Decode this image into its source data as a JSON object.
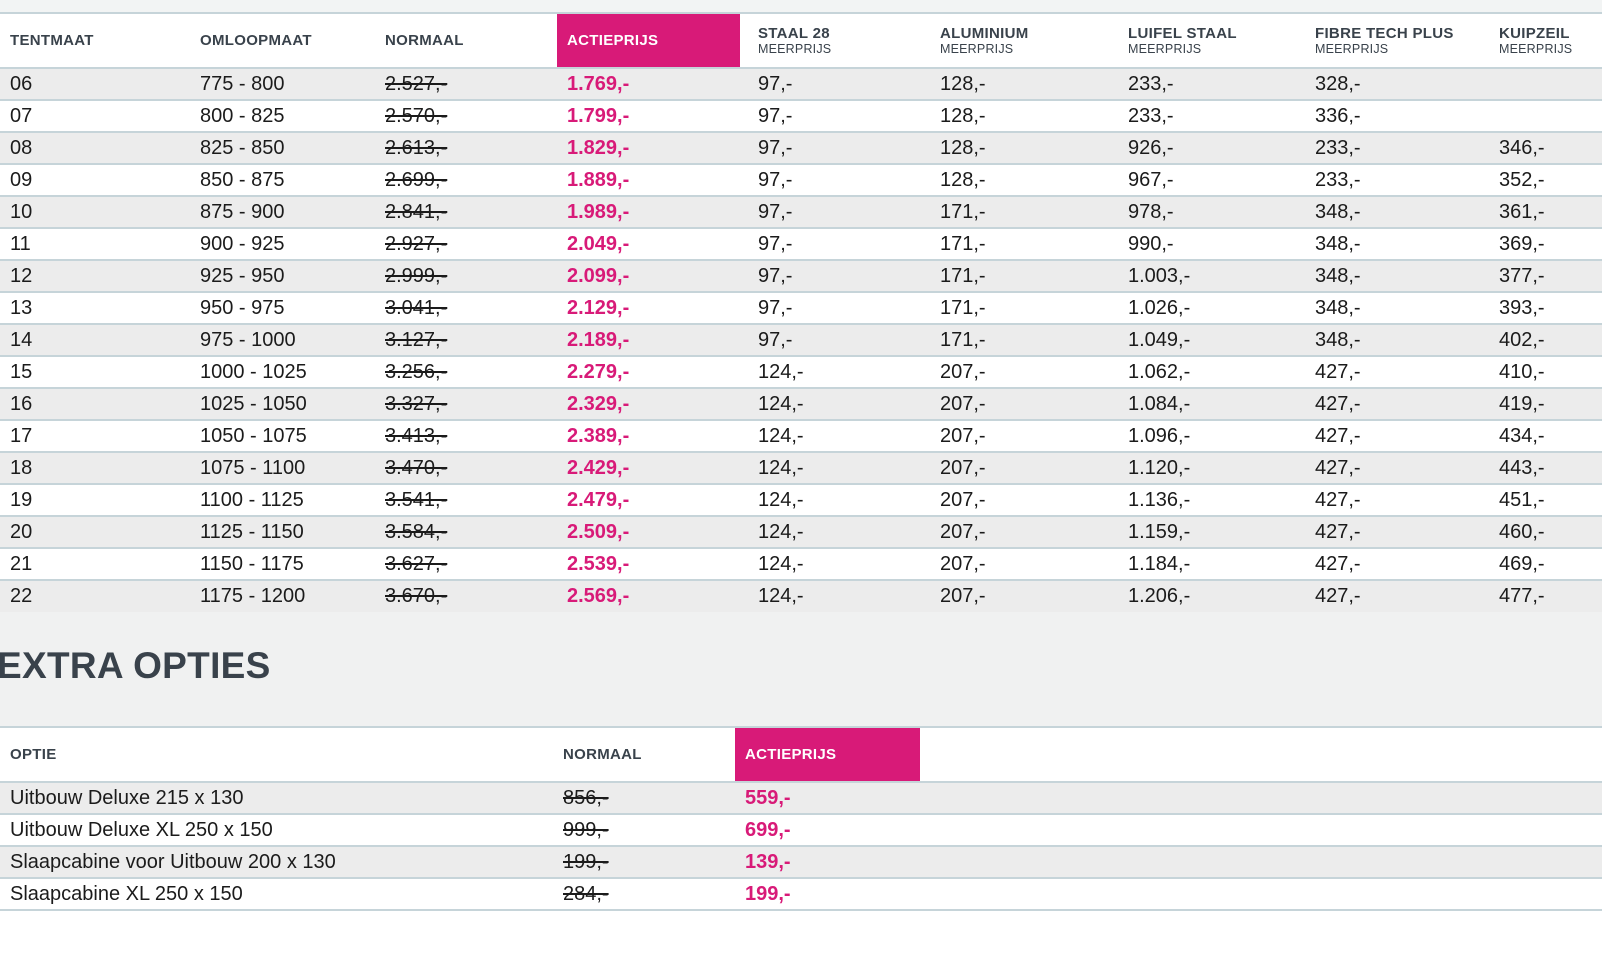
{
  "colors": {
    "accent": "#d81a78"
  },
  "main_table": {
    "columns": [
      {
        "label": "TENTMAAT",
        "sub": ""
      },
      {
        "label": "OMLOOPMAAT",
        "sub": ""
      },
      {
        "label": "NORMAAL",
        "sub": ""
      },
      {
        "label": "ACTIEPRIJS",
        "sub": ""
      },
      {
        "label": "STAAL 28",
        "sub": "MEERPRIJS"
      },
      {
        "label": "ALUMINIUM",
        "sub": "MEERPRIJS"
      },
      {
        "label": "LUIFEL STAAL",
        "sub": "MEERPRIJS"
      },
      {
        "label": "FIBRE TECH PLUS",
        "sub": "MEERPRIJS"
      },
      {
        "label": "KUIPZEIL",
        "sub": "MEERPRIJS"
      }
    ],
    "keys": [
      "tentmaat",
      "omloopmaat",
      "normaal",
      "actieprijs",
      "staal28",
      "aluminium",
      "luifel-staal",
      "fibre-tech-plus",
      "kuipzeil"
    ],
    "cell_styles": [
      "plain",
      "plain",
      "strike",
      "deal",
      "plain",
      "plain",
      "plain",
      "plain",
      "plain"
    ],
    "rows": [
      [
        "06",
        "775 - 800",
        "2.527,-",
        "1.769,-",
        "97,-",
        "128,-",
        "233,-",
        "328,-",
        ""
      ],
      [
        "07",
        "800 - 825",
        "2.570,-",
        "1.799,-",
        "97,-",
        "128,-",
        "233,-",
        "336,-",
        ""
      ],
      [
        "08",
        "825 - 850",
        "2.613,-",
        "1.829,-",
        "97,-",
        "128,-",
        "926,-",
        "233,-",
        "346,-"
      ],
      [
        "09",
        "850 - 875",
        "2.699,-",
        "1.889,-",
        "97,-",
        "128,-",
        "967,-",
        "233,-",
        "352,-"
      ],
      [
        "10",
        "875 - 900",
        "2.841,-",
        "1.989,-",
        "97,-",
        "171,-",
        "978,-",
        "348,-",
        "361,-"
      ],
      [
        "11",
        "900 - 925",
        "2.927,-",
        "2.049,-",
        "97,-",
        "171,-",
        "990,-",
        "348,-",
        "369,-"
      ],
      [
        "12",
        "925 - 950",
        "2.999,-",
        "2.099,-",
        "97,-",
        "171,-",
        "1.003,-",
        "348,-",
        "377,-"
      ],
      [
        "13",
        "950 - 975",
        "3.041,-",
        "2.129,-",
        "97,-",
        "171,-",
        "1.026,-",
        "348,-",
        "393,-"
      ],
      [
        "14",
        "975 - 1000",
        "3.127,-",
        "2.189,-",
        "97,-",
        "171,-",
        "1.049,-",
        "348,-",
        "402,-"
      ],
      [
        "15",
        "1000 - 1025",
        "3.256,-",
        "2.279,-",
        "124,-",
        "207,-",
        "1.062,-",
        "427,-",
        "410,-"
      ],
      [
        "16",
        "1025 - 1050",
        "3.327,-",
        "2.329,-",
        "124,-",
        "207,-",
        "1.084,-",
        "427,-",
        "419,-"
      ],
      [
        "17",
        "1050 - 1075",
        "3.413,-",
        "2.389,-",
        "124,-",
        "207,-",
        "1.096,-",
        "427,-",
        "434,-"
      ],
      [
        "18",
        "1075 - 1100",
        "3.470,-",
        "2.429,-",
        "124,-",
        "207,-",
        "1.120,-",
        "427,-",
        "443,-"
      ],
      [
        "19",
        "1100 - 1125",
        "3.541,-",
        "2.479,-",
        "124,-",
        "207,-",
        "1.136,-",
        "427,-",
        "451,-"
      ],
      [
        "20",
        "1125 - 1150",
        "3.584,-",
        "2.509,-",
        "124,-",
        "207,-",
        "1.159,-",
        "427,-",
        "460,-"
      ],
      [
        "21",
        "1150 - 1175",
        "3.627,-",
        "2.539,-",
        "124,-",
        "207,-",
        "1.184,-",
        "427,-",
        "469,-"
      ],
      [
        "22",
        "1175 - 1200",
        "3.670,-",
        "2.569,-",
        "124,-",
        "207,-",
        "1.206,-",
        "427,-",
        "477,-"
      ]
    ]
  },
  "extra_opties": {
    "title": "EXTRA OPTIES",
    "columns": [
      {
        "label": "OPTIE",
        "sub": ""
      },
      {
        "label": "NORMAAL",
        "sub": ""
      },
      {
        "label": "ACTIEPRIJS",
        "sub": ""
      },
      {
        "label": "",
        "sub": ""
      }
    ],
    "keys": [
      "optie",
      "normaal",
      "actieprijs",
      "filler"
    ],
    "cell_styles": [
      "plain",
      "strike",
      "deal",
      "plain"
    ],
    "rows": [
      [
        "Uitbouw Deluxe 215 x 130",
        "856,-",
        "559,-"
      ],
      [
        "Uitbouw Deluxe XL 250 x 150",
        "999,-",
        "699,-"
      ],
      [
        "Slaapcabine voor Uitbouw 200 x 130",
        "199,-",
        "139,-"
      ],
      [
        "Slaapcabine XL 250 x 150",
        "284,-",
        "199,-"
      ]
    ]
  }
}
